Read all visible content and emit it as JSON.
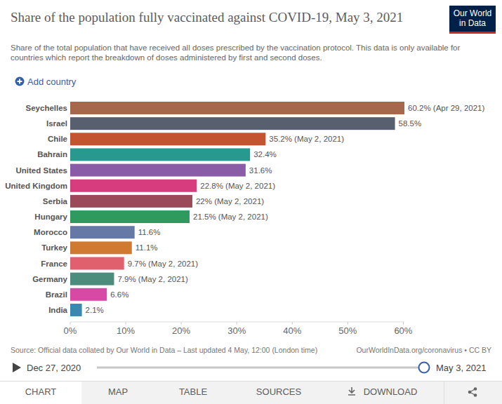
{
  "chart_data": {
    "type": "bar",
    "orientation": "horizontal",
    "title": "Share of the population fully vaccinated against COVID-19, May 3, 2021",
    "subtitle": "Share of the total population that have received all doses prescribed by the vaccination protocol. This data is only available for countries which report the breakdown of doses administered by first and second doses.",
    "source": "Source: Official data collated by Our World in Data – Last updated 4 May, 12:00 (London time)",
    "categories": [
      "Seychelles",
      "Israel",
      "Chile",
      "Bahrain",
      "United States",
      "United Kingdom",
      "Serbia",
      "Hungary",
      "Morocco",
      "Turkey",
      "France",
      "Germany",
      "Brazil",
      "India"
    ],
    "values": [
      60.2,
      58.5,
      35.2,
      32.4,
      31.6,
      22.8,
      22,
      21.5,
      11.6,
      11.1,
      9.7,
      7.9,
      6.6,
      2.1
    ],
    "value_labels": [
      "60.2% (Apr 29, 2021)",
      "58.5%",
      "35.2% (May 2, 2021)",
      "32.4%",
      "31.6%",
      "22.8% (May 2, 2021)",
      "22% (May 2, 2021)",
      "21.5% (May 2, 2021)",
      "11.6%",
      "11.1%",
      "9.7% (May 2, 2021)",
      "7.9% (May 2, 2021)",
      "6.6%",
      "2.1%"
    ],
    "colors": [
      "#a5684a",
      "#58606f",
      "#c4532f",
      "#28998f",
      "#8a5ca8",
      "#d73c7e",
      "#9a4a58",
      "#2e9a5e",
      "#6679a6",
      "#cf7a30",
      "#e0606e",
      "#4c8c7c",
      "#d64aa5",
      "#3a87b0"
    ],
    "xlim": [
      0,
      60.2
    ],
    "xticks": [
      {
        "value": 0,
        "label": "0%"
      },
      {
        "value": 10,
        "label": "10%"
      },
      {
        "value": 20,
        "label": "20%"
      },
      {
        "value": 30,
        "label": "30%"
      },
      {
        "value": 40,
        "label": "40%"
      },
      {
        "value": 50,
        "label": "50%"
      },
      {
        "value": 60,
        "label": "60%"
      }
    ],
    "grid": false,
    "data_labels": true
  },
  "page": {
    "logo_lines": [
      "Our World",
      "in Data"
    ],
    "add_country": "Add country",
    "license": "OurWorldInData.org/coronavirus • CC BY",
    "timeline_start": "Dec 27, 2020",
    "timeline_end": "May 3, 2021",
    "tabs": [
      "CHART",
      "MAP",
      "TABLE",
      "SOURCES",
      "DOWNLOAD"
    ]
  }
}
